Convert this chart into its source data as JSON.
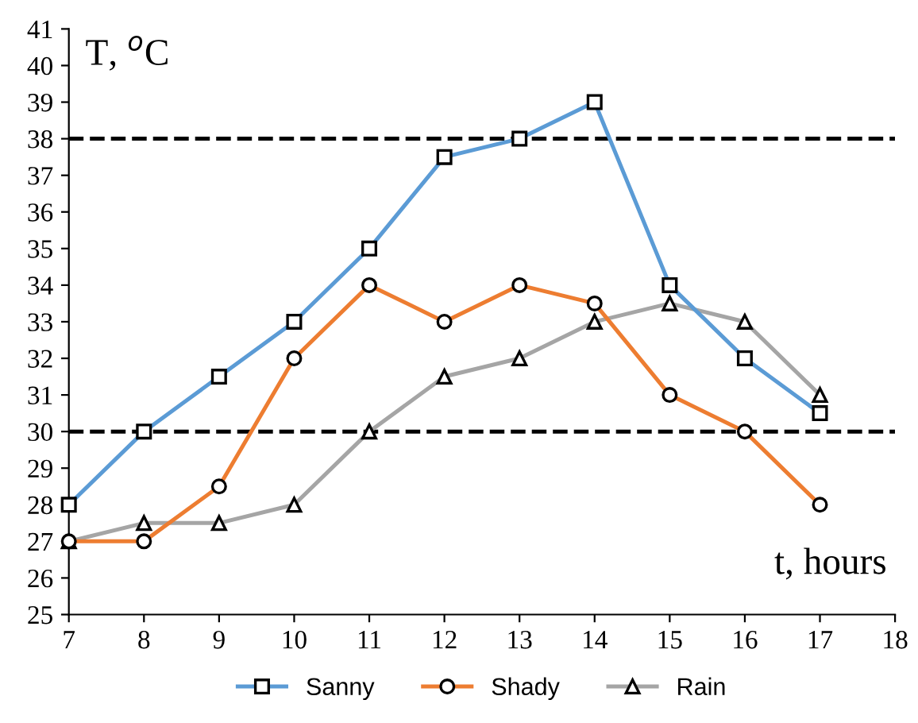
{
  "chart_data": {
    "type": "line",
    "xlabel": "t, hours",
    "ylabel": "T, $^{o}$C",
    "x": [
      7,
      8,
      9,
      10,
      11,
      12,
      13,
      14,
      15,
      16,
      17
    ],
    "series": [
      {
        "name": "Sanny",
        "color": "#5b9bd5",
        "marker": "square",
        "values": [
          28,
          30,
          31.5,
          33,
          35,
          37.5,
          38,
          39,
          34,
          32,
          30.5
        ]
      },
      {
        "name": "Shady",
        "color": "#ed7d31",
        "marker": "circle",
        "values": [
          27,
          27,
          28.5,
          32,
          34,
          33,
          34,
          33.5,
          31,
          30,
          28
        ]
      },
      {
        "name": "Rain",
        "color": "#a5a5a5",
        "marker": "triangle",
        "values": [
          27,
          27.5,
          27.5,
          28,
          30,
          31.5,
          32,
          33,
          33.5,
          33,
          31
        ]
      }
    ],
    "xlim": [
      7,
      18
    ],
    "xticks": [
      7,
      8,
      9,
      10,
      11,
      12,
      13,
      14,
      15,
      16,
      17,
      18
    ],
    "ylim": [
      25,
      41
    ],
    "yticks": [
      25,
      26,
      27,
      28,
      29,
      30,
      31,
      32,
      33,
      34,
      35,
      36,
      37,
      38,
      39,
      40,
      41
    ],
    "ref_lines": [
      {
        "axis": "y",
        "value": 38,
        "color": "#000000",
        "line_style": "dashed"
      },
      {
        "axis": "y",
        "value": 30,
        "color": "#000000",
        "line_style": "dashed"
      }
    ],
    "grid": false,
    "legend": "bottom",
    "line_style": "solid"
  }
}
